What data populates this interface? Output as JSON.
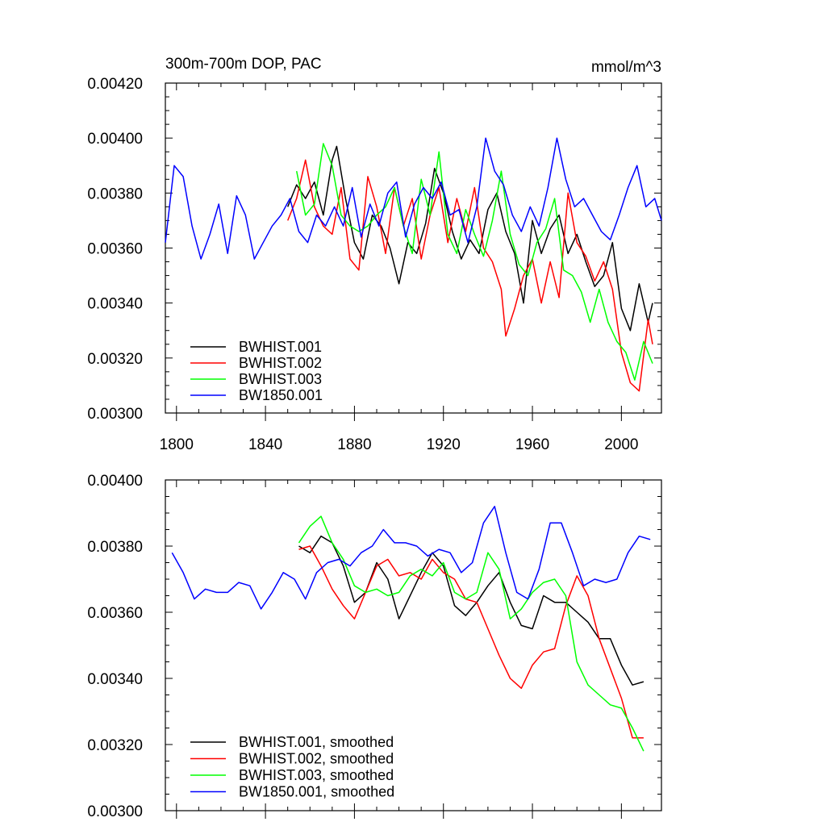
{
  "chart_data": [
    {
      "type": "line",
      "title": "300m-700m DOP, PAC",
      "units": "mmol/m^3",
      "xlim": [
        1795,
        2018
      ],
      "ylim": [
        0.003,
        0.0042
      ],
      "xticks": [
        1800,
        1840,
        1880,
        1920,
        1960,
        2000
      ],
      "yticks": [
        0.003,
        0.0032,
        0.0034,
        0.0036,
        0.0038,
        0.004,
        0.0042
      ],
      "ytick_labels": [
        "0.00300",
        "0.00320",
        "0.00340",
        "0.00360",
        "0.00380",
        "0.00400",
        "0.00420"
      ],
      "xtick_labels": [
        "1800",
        "1840",
        "1880",
        "1920",
        "1960",
        "2000"
      ],
      "legend_position": "bottom-left",
      "series": [
        {
          "name": "BWHIST.001",
          "color": "#000000",
          "x": [
            1850,
            1854,
            1858,
            1862,
            1866,
            1870,
            1872,
            1876,
            1880,
            1884,
            1888,
            1892,
            1896,
            1900,
            1904,
            1908,
            1912,
            1916,
            1920,
            1924,
            1928,
            1932,
            1936,
            1940,
            1944,
            1948,
            1952,
            1956,
            1960,
            1964,
            1968,
            1972,
            1976,
            1980,
            1984,
            1988,
            1992,
            1996,
            2000,
            2004,
            2008,
            2012,
            2014
          ],
          "y": [
            0.00375,
            0.00383,
            0.00378,
            0.00384,
            0.00372,
            0.00392,
            0.00397,
            0.00378,
            0.00362,
            0.00356,
            0.00372,
            0.00368,
            0.0036,
            0.00347,
            0.00362,
            0.00358,
            0.00369,
            0.00389,
            0.0038,
            0.00366,
            0.00356,
            0.00363,
            0.00358,
            0.00374,
            0.0038,
            0.00366,
            0.00358,
            0.0034,
            0.0037,
            0.00358,
            0.00367,
            0.00372,
            0.00358,
            0.00365,
            0.00355,
            0.00346,
            0.0035,
            0.00362,
            0.00338,
            0.0033,
            0.00347,
            0.00333,
            0.0034
          ]
        },
        {
          "name": "BWHIST.002",
          "color": "#ff0000",
          "x": [
            1850,
            1854,
            1858,
            1862,
            1866,
            1870,
            1874,
            1878,
            1882,
            1886,
            1890,
            1894,
            1898,
            1902,
            1906,
            1910,
            1914,
            1918,
            1922,
            1926,
            1930,
            1934,
            1938,
            1942,
            1946,
            1948,
            1952,
            1956,
            1960,
            1964,
            1968,
            1972,
            1976,
            1980,
            1984,
            1988,
            1992,
            1996,
            2000,
            2004,
            2008,
            2012,
            2014
          ],
          "y": [
            0.0037,
            0.00378,
            0.00392,
            0.00375,
            0.00368,
            0.00365,
            0.00382,
            0.00356,
            0.00352,
            0.00386,
            0.00375,
            0.00358,
            0.00382,
            0.00368,
            0.00378,
            0.00356,
            0.00372,
            0.00382,
            0.00362,
            0.00378,
            0.00366,
            0.00382,
            0.0036,
            0.00355,
            0.00345,
            0.00328,
            0.00338,
            0.0035,
            0.00356,
            0.0034,
            0.00355,
            0.00342,
            0.0038,
            0.00362,
            0.00357,
            0.00348,
            0.00355,
            0.00345,
            0.00322,
            0.00311,
            0.00308,
            0.00334,
            0.00325
          ]
        },
        {
          "name": "BWHIST.003",
          "color": "#00ff00",
          "x": [
            1854,
            1858,
            1862,
            1866,
            1870,
            1874,
            1878,
            1882,
            1886,
            1890,
            1894,
            1898,
            1902,
            1906,
            1910,
            1914,
            1918,
            1922,
            1926,
            1930,
            1934,
            1938,
            1942,
            1946,
            1950,
            1954,
            1958,
            1962,
            1966,
            1970,
            1974,
            1978,
            1982,
            1986,
            1990,
            1994,
            1998,
            2002,
            2006,
            2010,
            2014
          ],
          "y": [
            0.00388,
            0.00372,
            0.00376,
            0.00398,
            0.0039,
            0.00372,
            0.00368,
            0.00366,
            0.00368,
            0.00372,
            0.00375,
            0.00382,
            0.00368,
            0.00358,
            0.00385,
            0.00372,
            0.00395,
            0.00365,
            0.00358,
            0.00374,
            0.00365,
            0.00357,
            0.0037,
            0.00388,
            0.00365,
            0.00354,
            0.0035,
            0.00362,
            0.00367,
            0.00378,
            0.00352,
            0.0035,
            0.00344,
            0.00333,
            0.00345,
            0.00333,
            0.00326,
            0.00322,
            0.00312,
            0.00326,
            0.00318
          ]
        },
        {
          "name": "BW1850.001",
          "color": "#0000ff",
          "x": [
            1795,
            1799,
            1803,
            1807,
            1811,
            1815,
            1819,
            1823,
            1827,
            1831,
            1835,
            1839,
            1843,
            1847,
            1851,
            1855,
            1859,
            1863,
            1867,
            1871,
            1875,
            1879,
            1883,
            1887,
            1891,
            1895,
            1899,
            1903,
            1907,
            1911,
            1915,
            1919,
            1923,
            1927,
            1931,
            1935,
            1939,
            1943,
            1947,
            1951,
            1955,
            1959,
            1963,
            1967,
            1971,
            1975,
            1979,
            1983,
            1987,
            1991,
            1995,
            1999,
            2003,
            2007,
            2011,
            2015,
            2018
          ],
          "y": [
            0.00362,
            0.0039,
            0.00386,
            0.00368,
            0.00356,
            0.00365,
            0.00376,
            0.00358,
            0.00379,
            0.00372,
            0.00356,
            0.00362,
            0.00368,
            0.00372,
            0.00378,
            0.00366,
            0.00362,
            0.00372,
            0.00368,
            0.00375,
            0.00368,
            0.00382,
            0.00364,
            0.00376,
            0.00368,
            0.0038,
            0.00384,
            0.00364,
            0.00376,
            0.00382,
            0.00378,
            0.00384,
            0.00372,
            0.00374,
            0.00362,
            0.00375,
            0.004,
            0.00388,
            0.00383,
            0.00372,
            0.00366,
            0.00375,
            0.00368,
            0.00382,
            0.004,
            0.00385,
            0.00375,
            0.00378,
            0.00372,
            0.00366,
            0.00363,
            0.00372,
            0.00382,
            0.0039,
            0.00375,
            0.00378,
            0.0037
          ]
        }
      ]
    },
    {
      "type": "line",
      "title": "",
      "xlim": [
        1795,
        2018
      ],
      "ylim": [
        0.003,
        0.004
      ],
      "xticks": [
        1800,
        1840,
        1880,
        1920,
        1960,
        2000
      ],
      "yticks": [
        0.003,
        0.0032,
        0.0034,
        0.0036,
        0.0038,
        0.004
      ],
      "ytick_labels": [
        "0.00300",
        "0.00320",
        "0.00340",
        "0.00360",
        "0.00380",
        "0.00400"
      ],
      "legend_position": "bottom-left",
      "series": [
        {
          "name": "BWHIST.001, smoothed",
          "color": "#000000",
          "x": [
            1855,
            1860,
            1865,
            1870,
            1875,
            1880,
            1885,
            1890,
            1895,
            1900,
            1905,
            1910,
            1915,
            1920,
            1925,
            1930,
            1935,
            1940,
            1945,
            1950,
            1955,
            1960,
            1965,
            1970,
            1975,
            1980,
            1985,
            1990,
            1995,
            2000,
            2005,
            2010
          ],
          "y": [
            0.0038,
            0.00378,
            0.00383,
            0.00381,
            0.00374,
            0.00363,
            0.00366,
            0.00375,
            0.0037,
            0.00358,
            0.00365,
            0.00372,
            0.00378,
            0.00374,
            0.00362,
            0.00359,
            0.00363,
            0.00368,
            0.00372,
            0.00363,
            0.00356,
            0.00355,
            0.00365,
            0.00363,
            0.00363,
            0.0036,
            0.00357,
            0.00352,
            0.00352,
            0.00344,
            0.00338,
            0.00339
          ]
        },
        {
          "name": "BWHIST.002, smoothed",
          "color": "#ff0000",
          "x": [
            1855,
            1860,
            1865,
            1870,
            1875,
            1880,
            1885,
            1890,
            1895,
            1900,
            1905,
            1910,
            1915,
            1920,
            1925,
            1930,
            1935,
            1940,
            1945,
            1950,
            1955,
            1960,
            1965,
            1970,
            1975,
            1980,
            1985,
            1990,
            1995,
            2000,
            2005,
            2010
          ],
          "y": [
            0.00379,
            0.0038,
            0.00374,
            0.00367,
            0.00362,
            0.00358,
            0.00366,
            0.00374,
            0.00376,
            0.00371,
            0.00372,
            0.0037,
            0.00376,
            0.00372,
            0.0037,
            0.00364,
            0.00363,
            0.00355,
            0.00347,
            0.0034,
            0.00337,
            0.00344,
            0.00348,
            0.00349,
            0.00362,
            0.00371,
            0.00365,
            0.00352,
            0.00343,
            0.00334,
            0.00322,
            0.00322
          ]
        },
        {
          "name": "BWHIST.003, smoothed",
          "color": "#00ff00",
          "x": [
            1855,
            1860,
            1865,
            1870,
            1875,
            1880,
            1885,
            1890,
            1895,
            1900,
            1905,
            1910,
            1915,
            1920,
            1925,
            1930,
            1935,
            1940,
            1945,
            1950,
            1955,
            1960,
            1965,
            1970,
            1975,
            1980,
            1985,
            1990,
            1995,
            2000,
            2005,
            2010
          ],
          "y": [
            0.00381,
            0.00386,
            0.00389,
            0.00381,
            0.00376,
            0.00368,
            0.00366,
            0.00367,
            0.00365,
            0.00366,
            0.00371,
            0.00373,
            0.00371,
            0.00375,
            0.00366,
            0.00364,
            0.00366,
            0.00378,
            0.00373,
            0.00358,
            0.00361,
            0.00366,
            0.00369,
            0.0037,
            0.00365,
            0.00345,
            0.00338,
            0.00335,
            0.00332,
            0.00331,
            0.00325,
            0.00318
          ]
        },
        {
          "name": "BW1850.001, smoothed",
          "color": "#0000ff",
          "x": [
            1798,
            1803,
            1808,
            1813,
            1818,
            1823,
            1828,
            1833,
            1838,
            1843,
            1848,
            1853,
            1858,
            1863,
            1868,
            1873,
            1878,
            1883,
            1888,
            1893,
            1898,
            1903,
            1908,
            1913,
            1918,
            1923,
            1928,
            1933,
            1938,
            1943,
            1948,
            1953,
            1958,
            1963,
            1968,
            1973,
            1978,
            1983,
            1988,
            1993,
            1998,
            2003,
            2008,
            2013
          ],
          "y": [
            0.00378,
            0.00372,
            0.00364,
            0.00367,
            0.00366,
            0.00366,
            0.00369,
            0.00368,
            0.00361,
            0.00366,
            0.00372,
            0.0037,
            0.00364,
            0.00372,
            0.00375,
            0.00376,
            0.00374,
            0.00378,
            0.0038,
            0.00385,
            0.00381,
            0.00381,
            0.0038,
            0.00377,
            0.00379,
            0.00378,
            0.00372,
            0.00375,
            0.00387,
            0.00392,
            0.00378,
            0.00366,
            0.00364,
            0.00373,
            0.00387,
            0.00387,
            0.00378,
            0.00368,
            0.0037,
            0.00369,
            0.0037,
            0.00378,
            0.00383,
            0.00382
          ]
        }
      ]
    }
  ]
}
